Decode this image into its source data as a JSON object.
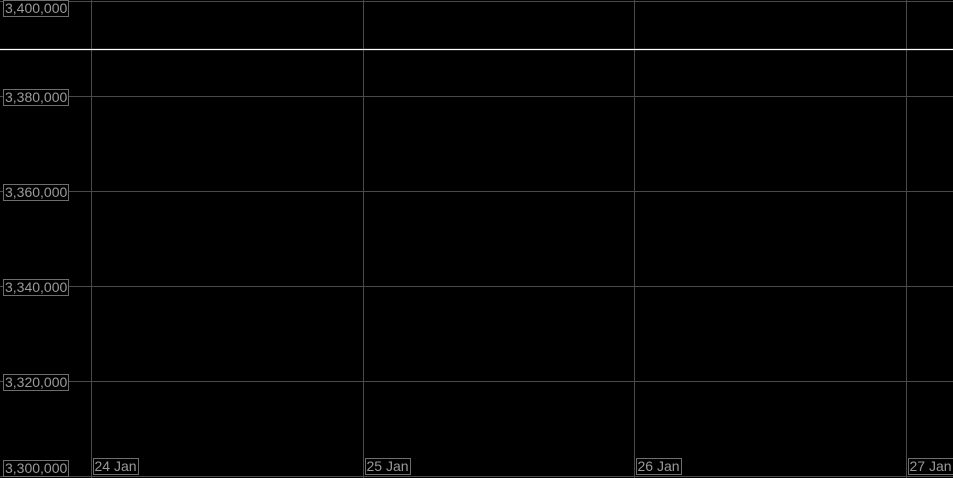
{
  "chart_data": {
    "type": "line",
    "title": "",
    "xlabel": "",
    "ylabel": "",
    "ylim": [
      3300000,
      3400000
    ],
    "y_ticks": [
      "3,400,000",
      "3,380,000",
      "3,360,000",
      "3,340,000",
      "3,320,000",
      "3,300,000"
    ],
    "y_tick_values": [
      3400000,
      3380000,
      3360000,
      3340000,
      3320000,
      3300000
    ],
    "x_ticks": [
      "24 Jan",
      "25 Jan",
      "26 Jan",
      "27 Jan"
    ],
    "grid": true,
    "series": [
      {
        "x": [
          "24 Jan",
          "25 Jan",
          "26 Jan",
          "27 Jan"
        ],
        "values": [
          3390000,
          3390000,
          3390000,
          3390000
        ],
        "color": "#ffffff"
      }
    ],
    "background": "#000000",
    "grid_color": "#4a4a4a"
  }
}
